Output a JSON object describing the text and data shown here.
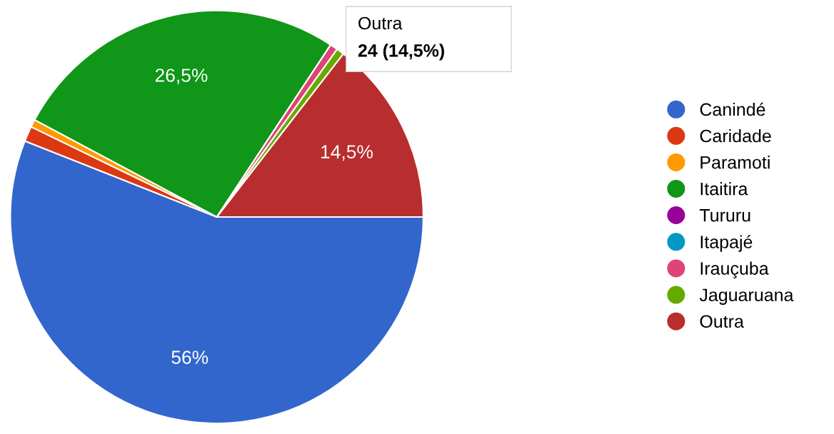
{
  "chart_data": {
    "type": "pie",
    "categories": [
      "Canindé",
      "Caridade",
      "Paramoti",
      "Itaitira",
      "Tururu",
      "Itapajé",
      "Irauçuba",
      "Jaguaruana",
      "Outra"
    ],
    "values": [
      56,
      1.2,
      0.6,
      26.5,
      0,
      0,
      0.6,
      0.6,
      14.5
    ],
    "colors": [
      "#3366cc",
      "#dc3912",
      "#ff9900",
      "#109618",
      "#990099",
      "#0099c6",
      "#dd4477",
      "#66aa00",
      "#b82e2e"
    ],
    "value_labels": [
      "56%",
      null,
      null,
      "26,5%",
      null,
      null,
      null,
      null,
      "14,5%"
    ],
    "annotations": [
      "Outra",
      "24 (14,5%)"
    ],
    "legend": "right"
  }
}
